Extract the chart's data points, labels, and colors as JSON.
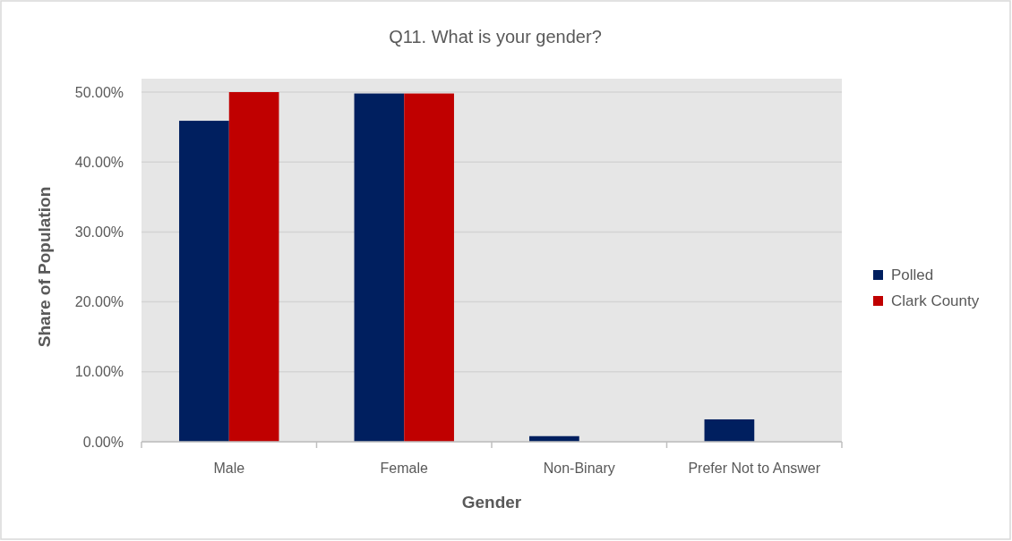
{
  "chart_data": {
    "type": "bar",
    "title": "Q11. What is your gender?",
    "xlabel": "Gender",
    "ylabel": "Share of Population",
    "categories": [
      "Male",
      "Female",
      "Non-Binary",
      "Prefer Not to Answer"
    ],
    "series": [
      {
        "name": "Polled",
        "color": "#001f5f",
        "values": [
          45.9,
          49.8,
          0.8,
          3.2
        ]
      },
      {
        "name": "Clark County",
        "color": "#c00000",
        "values": [
          50.0,
          49.8,
          null,
          null
        ]
      }
    ],
    "ylim": [
      0,
      50
    ],
    "yticks": [
      {
        "value": 0,
        "label": "0.00%"
      },
      {
        "value": 10,
        "label": "10.00%"
      },
      {
        "value": 20,
        "label": "20.00%"
      },
      {
        "value": 30,
        "label": "30.00%"
      },
      {
        "value": 40,
        "label": "40.00%"
      },
      {
        "value": 50,
        "label": "50.00%"
      }
    ],
    "grid": "y",
    "legend": "right"
  }
}
